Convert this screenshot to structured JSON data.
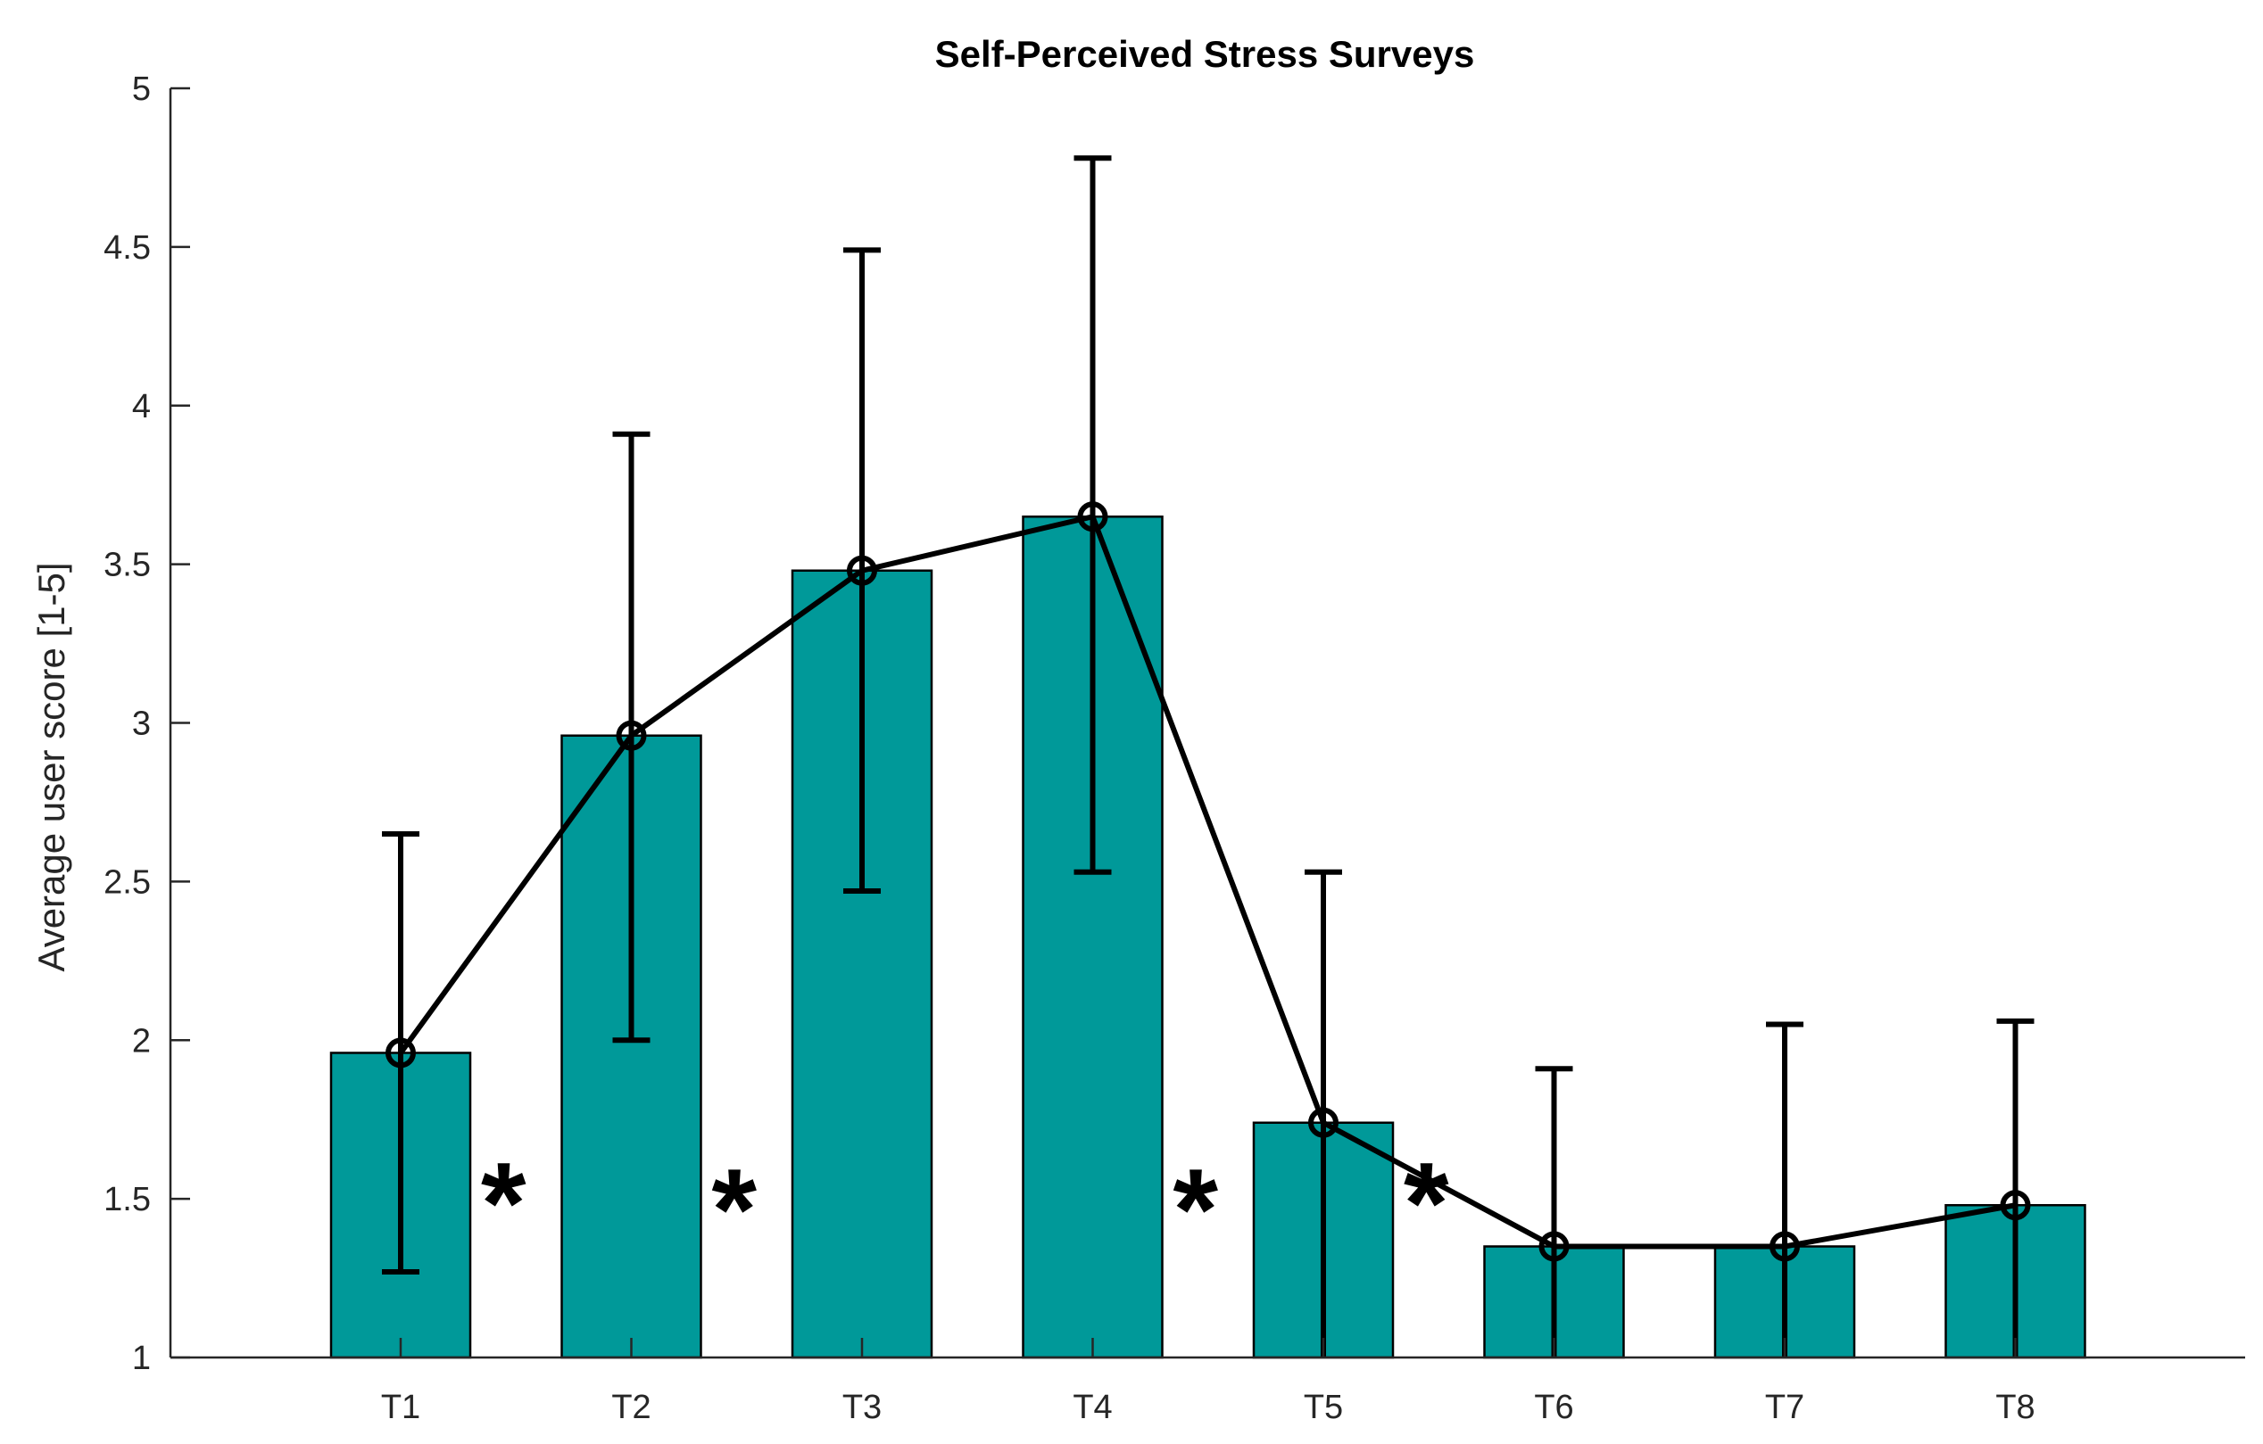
{
  "chart_data": {
    "type": "bar",
    "title": "Self-Perceived Stress Surveys",
    "xlabel": "",
    "ylabel": "Average user score [1-5]",
    "categories": [
      "T1",
      "T2",
      "T3",
      "T4",
      "T5",
      "T6",
      "T7",
      "T8"
    ],
    "values": [
      1.96,
      2.96,
      3.48,
      3.65,
      1.74,
      1.35,
      1.35,
      1.48
    ],
    "error_upper": [
      2.65,
      3.91,
      4.49,
      4.78,
      2.53,
      1.91,
      2.05,
      2.06
    ],
    "error_lower": [
      1.27,
      2.0,
      2.47,
      2.53,
      1.0,
      1.0,
      1.0,
      1.0
    ],
    "ylim": [
      1,
      5
    ],
    "yticks": [
      1,
      1.5,
      2,
      2.5,
      3,
      3.5,
      4,
      4.5,
      5
    ],
    "ytick_labels": [
      "1",
      "1.5",
      "2",
      "2.5",
      "3",
      "3.5",
      "4",
      "4.5",
      "5"
    ],
    "overlay_line": "mean values connected with circle markers",
    "significance_markers": [
      {
        "between": [
          "T1",
          "T2"
        ],
        "symbol": "*",
        "value": 1.58
      },
      {
        "between": [
          "T2",
          "T3"
        ],
        "symbol": "*",
        "value": 1.56
      },
      {
        "between": [
          "T4",
          "T5"
        ],
        "symbol": "*",
        "value": 1.56
      },
      {
        "between": [
          "T5",
          "T6"
        ],
        "symbol": "*",
        "value": 1.58
      }
    ],
    "grid": false,
    "colors": {
      "bar": "#009999",
      "bar_edge": "#000000",
      "line": "#000000"
    }
  }
}
